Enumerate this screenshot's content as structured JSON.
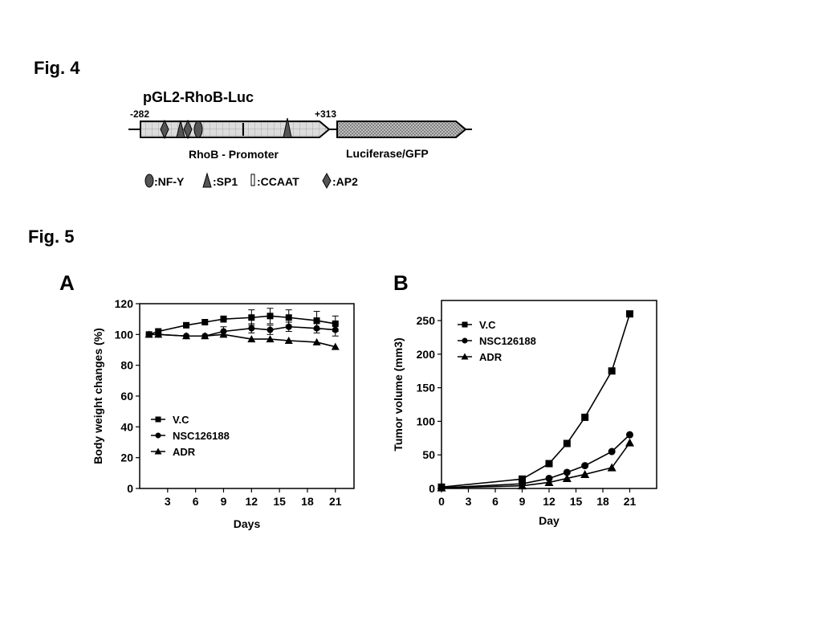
{
  "fig4": {
    "title": "Fig. 4",
    "construct_name": "pGL2-RhoB-Luc",
    "start_label": "-282",
    "end_label": "+313",
    "promoter_label": "RhoB - Promoter",
    "reporter_label": "Luciferase/GFP",
    "legend": {
      "nfy": ":NF-Y",
      "sp1": ":SP1",
      "ccaat": ":CCAAT",
      "ap2": ":AP2"
    }
  },
  "fig5": {
    "title": "Fig. 5",
    "panel_a_letter": "A",
    "panel_b_letter": "B"
  },
  "chart_data": [
    {
      "type": "line",
      "panel": "A",
      "xlabel": "Days",
      "ylabel": "Body weight changes (%)",
      "xlim": [
        0,
        23
      ],
      "ylim": [
        0,
        120
      ],
      "xticks": [
        3,
        6,
        9,
        12,
        15,
        18,
        21
      ],
      "yticks": [
        0,
        20,
        40,
        60,
        80,
        100,
        120
      ],
      "legend_position": "lower-left",
      "series": [
        {
          "name": "V.C",
          "marker": "square",
          "x": [
            1,
            2,
            5,
            7,
            9,
            12,
            14,
            16,
            19,
            21
          ],
          "y": [
            100,
            102,
            106,
            108,
            110,
            111,
            112,
            111,
            109,
            107
          ],
          "err": [
            0,
            0,
            0,
            0,
            2,
            5,
            5,
            5,
            6,
            5
          ]
        },
        {
          "name": "NSC126188",
          "marker": "circle",
          "x": [
            1,
            2,
            5,
            7,
            9,
            12,
            14,
            16,
            19,
            21
          ],
          "y": [
            100,
            100,
            99,
            99,
            102,
            104,
            103,
            105,
            104,
            103
          ],
          "err": [
            0,
            0,
            0,
            0,
            3,
            3,
            3,
            3,
            3,
            4
          ]
        },
        {
          "name": "ADR",
          "marker": "triangle",
          "x": [
            1,
            2,
            5,
            7,
            9,
            12,
            14,
            16,
            19,
            21
          ],
          "y": [
            100,
            100,
            99,
            99,
            100,
            97,
            97,
            96,
            95,
            92
          ],
          "err": [
            0,
            0,
            0,
            0,
            0,
            0,
            0,
            0,
            0,
            0
          ]
        }
      ]
    },
    {
      "type": "line",
      "panel": "B",
      "xlabel": "Day",
      "ylabel": "Tumor volume  (mm3)",
      "xlim": [
        0,
        24
      ],
      "ylim": [
        0,
        280
      ],
      "xticks": [
        0,
        3,
        6,
        9,
        12,
        15,
        18,
        21
      ],
      "yticks": [
        0,
        50,
        100,
        150,
        200,
        250
      ],
      "legend_position": "top-left",
      "series": [
        {
          "name": "V.C",
          "marker": "square",
          "x": [
            0,
            9,
            12,
            14,
            16,
            19,
            21
          ],
          "y": [
            2,
            14,
            37,
            67,
            106,
            175,
            260
          ]
        },
        {
          "name": "NSC126188",
          "marker": "circle",
          "x": [
            0,
            9,
            12,
            14,
            16,
            19,
            21
          ],
          "y": [
            1,
            7,
            15,
            24,
            34,
            55,
            80
          ]
        },
        {
          "name": "ADR",
          "marker": "triangle",
          "x": [
            0,
            9,
            12,
            14,
            16,
            19,
            21
          ],
          "y": [
            1,
            4,
            9,
            15,
            21,
            31,
            68
          ]
        }
      ]
    }
  ]
}
